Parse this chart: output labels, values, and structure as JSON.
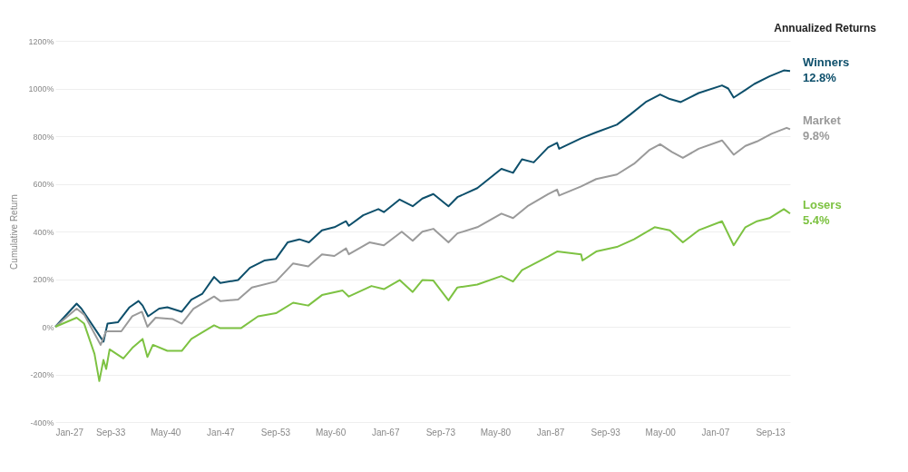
{
  "chart_data": {
    "type": "line",
    "ylabel": "Cumulative Return",
    "legend_title": "Annualized Returns",
    "xlim": [
      "1927-01",
      "2016-02"
    ],
    "xticks": [
      {
        "value": "1927-01",
        "label": "Jan-27"
      },
      {
        "value": "1933-09",
        "label": "Sep-33"
      },
      {
        "value": "1940-05",
        "label": "May-40"
      },
      {
        "value": "1947-01",
        "label": "Jan-47"
      },
      {
        "value": "1953-09",
        "label": "Sep-53"
      },
      {
        "value": "1960-05",
        "label": "May-60"
      },
      {
        "value": "1967-01",
        "label": "Jan-67"
      },
      {
        "value": "1973-09",
        "label": "Sep-73"
      },
      {
        "value": "1980-05",
        "label": "May-80"
      },
      {
        "value": "1987-01",
        "label": "Jan-87"
      },
      {
        "value": "1993-09",
        "label": "Sep-93"
      },
      {
        "value": "2000-05",
        "label": "May-00"
      },
      {
        "value": "2007-01",
        "label": "Jan-07"
      },
      {
        "value": "2013-09",
        "label": "Sep-13"
      }
    ],
    "ylim": [
      -400,
      1200
    ],
    "yticks": [
      {
        "value": -400,
        "label": "-400%"
      },
      {
        "value": -200,
        "label": "-200%"
      },
      {
        "value": 0,
        "label": "0%"
      },
      {
        "value": 200,
        "label": "200%"
      },
      {
        "value": 400,
        "label": "400%"
      },
      {
        "value": 600,
        "label": "600%"
      },
      {
        "value": 800,
        "label": "800%"
      },
      {
        "value": 1000,
        "label": "1000%"
      },
      {
        "value": 1200,
        "label": "1200%"
      }
    ],
    "grid": "y",
    "marker": "none",
    "line_style": "solid",
    "series": [
      {
        "name": "Winners",
        "color": "#0d4f6b",
        "x": [
          "1927-01",
          "1929-08",
          "1930-03",
          "1932-04",
          "1932-11",
          "1933-05",
          "1934-08",
          "1936-01",
          "1937-02",
          "1937-08",
          "1938-04",
          "1939-08",
          "1940-08",
          "1942-05",
          "1943-07",
          "1944-11",
          "1946-04",
          "1947-01",
          "1949-03",
          "1950-08",
          "1952-05",
          "1953-10",
          "1955-03",
          "1956-08",
          "1957-10",
          "1959-05",
          "1960-11",
          "1962-04",
          "1962-08",
          "1964-05",
          "1966-03",
          "1966-11",
          "1968-10",
          "1970-05",
          "1971-07",
          "1972-11",
          "1974-09",
          "1975-10",
          "1978-03",
          "1981-02",
          "1982-07",
          "1983-08",
          "1985-01",
          "1986-10",
          "1987-11",
          "1988-02",
          "1990-10",
          "1992-08",
          "1995-02",
          "1996-10",
          "1998-08",
          "2000-05",
          "2001-07",
          "2002-11",
          "2005-01",
          "2007-11",
          "2008-08",
          "2009-04",
          "2010-09",
          "2011-10",
          "2013-08",
          "2015-05",
          "2016-02"
        ],
        "values": [
          0,
          97,
          76,
          -32,
          -63,
          13,
          19,
          82,
          108,
          89,
          44,
          76,
          82,
          63,
          114,
          139,
          209,
          184,
          196,
          247,
          278,
          285,
          354,
          367,
          354,
          405,
          418,
          443,
          424,
          468,
          494,
          481,
          534,
          506,
          538,
          557,
          506,
          544,
          582,
          663,
          646,
          703,
          690,
          753,
          772,
          747,
          791,
          816,
          848,
          892,
          943,
          975,
          956,
          943,
          981,
          1013,
          1000,
          962,
          994,
          1019,
          1051,
          1076,
          1073
        ]
      },
      {
        "name": "Market",
        "color": "#9a9a9a",
        "x": [
          "1927-01",
          "1929-08",
          "1930-07",
          "1932-07",
          "1933-03",
          "1935-01",
          "1936-05",
          "1937-07",
          "1938-03",
          "1939-03",
          "1941-04",
          "1942-05",
          "1943-10",
          "1946-04",
          "1947-01",
          "1949-03",
          "1950-11",
          "1953-10",
          "1955-11",
          "1957-09",
          "1959-05",
          "1960-11",
          "1962-04",
          "1962-08",
          "1965-02",
          "1966-11",
          "1969-01",
          "1970-05",
          "1971-07",
          "1972-11",
          "1974-09",
          "1975-10",
          "1978-03",
          "1981-02",
          "1982-07",
          "1984-04",
          "1986-10",
          "1987-11",
          "1988-02",
          "1990-10",
          "1992-08",
          "1995-02",
          "1997-03",
          "1999-01",
          "2000-05",
          "2001-10",
          "2003-02",
          "2005-01",
          "2007-11",
          "2009-04",
          "2010-09",
          "2012-02",
          "2013-11",
          "2015-09",
          "2016-02"
        ],
        "values": [
          0,
          76,
          51,
          -76,
          -19,
          -19,
          44,
          63,
          0,
          38,
          32,
          13,
          76,
          127,
          108,
          114,
          165,
          190,
          266,
          253,
          304,
          297,
          329,
          304,
          354,
          342,
          399,
          361,
          399,
          411,
          354,
          392,
          418,
          475,
          456,
          506,
          557,
          576,
          551,
          589,
          620,
          639,
          684,
          741,
          766,
          734,
          709,
          747,
          782,
          722,
          759,
          778,
          810,
          835,
          829
        ]
      },
      {
        "name": "Losers",
        "color": "#7dc242",
        "x": [
          "1927-01",
          "1929-08",
          "1930-07",
          "1931-10",
          "1932-05",
          "1932-11",
          "1933-03",
          "1933-08",
          "1935-04",
          "1936-05",
          "1937-08",
          "1938-03",
          "1938-11",
          "1940-08",
          "1942-05",
          "1943-07",
          "1946-04",
          "1947-01",
          "1949-07",
          "1951-08",
          "1953-10",
          "1955-11",
          "1957-09",
          "1959-05",
          "1961-11",
          "1962-08",
          "1965-05",
          "1966-11",
          "1968-10",
          "1970-05",
          "1971-07",
          "1972-11",
          "1974-09",
          "1975-10",
          "1978-03",
          "1981-02",
          "1982-07",
          "1983-08",
          "1986-10",
          "1987-11",
          "1990-10",
          "1990-12",
          "1992-08",
          "1995-02",
          "1997-03",
          "1999-09",
          "2001-07",
          "2003-02",
          "2005-01",
          "2007-11",
          "2009-04",
          "2010-09",
          "2012-02",
          "2013-08",
          "2015-05",
          "2016-02"
        ],
        "values": [
          0,
          38,
          13,
          -114,
          -228,
          -139,
          -177,
          -95,
          -133,
          -89,
          -51,
          -127,
          -76,
          -101,
          -101,
          -51,
          6,
          -6,
          -6,
          44,
          57,
          101,
          89,
          133,
          152,
          127,
          171,
          158,
          196,
          146,
          196,
          194,
          111,
          165,
          177,
          213,
          190,
          238,
          295,
          316,
          304,
          278,
          316,
          335,
          367,
          418,
          405,
          354,
          405,
          443,
          342,
          418,
          443,
          456,
          494,
          475
        ]
      }
    ],
    "annotations": [
      {
        "text": "12.8%",
        "x": "2016-02",
        "y": 1073
      },
      {
        "text": "9.8%",
        "x": "2016-02",
        "y": 829
      },
      {
        "text": "5.4%",
        "x": "2016-02",
        "y": 475
      }
    ]
  }
}
